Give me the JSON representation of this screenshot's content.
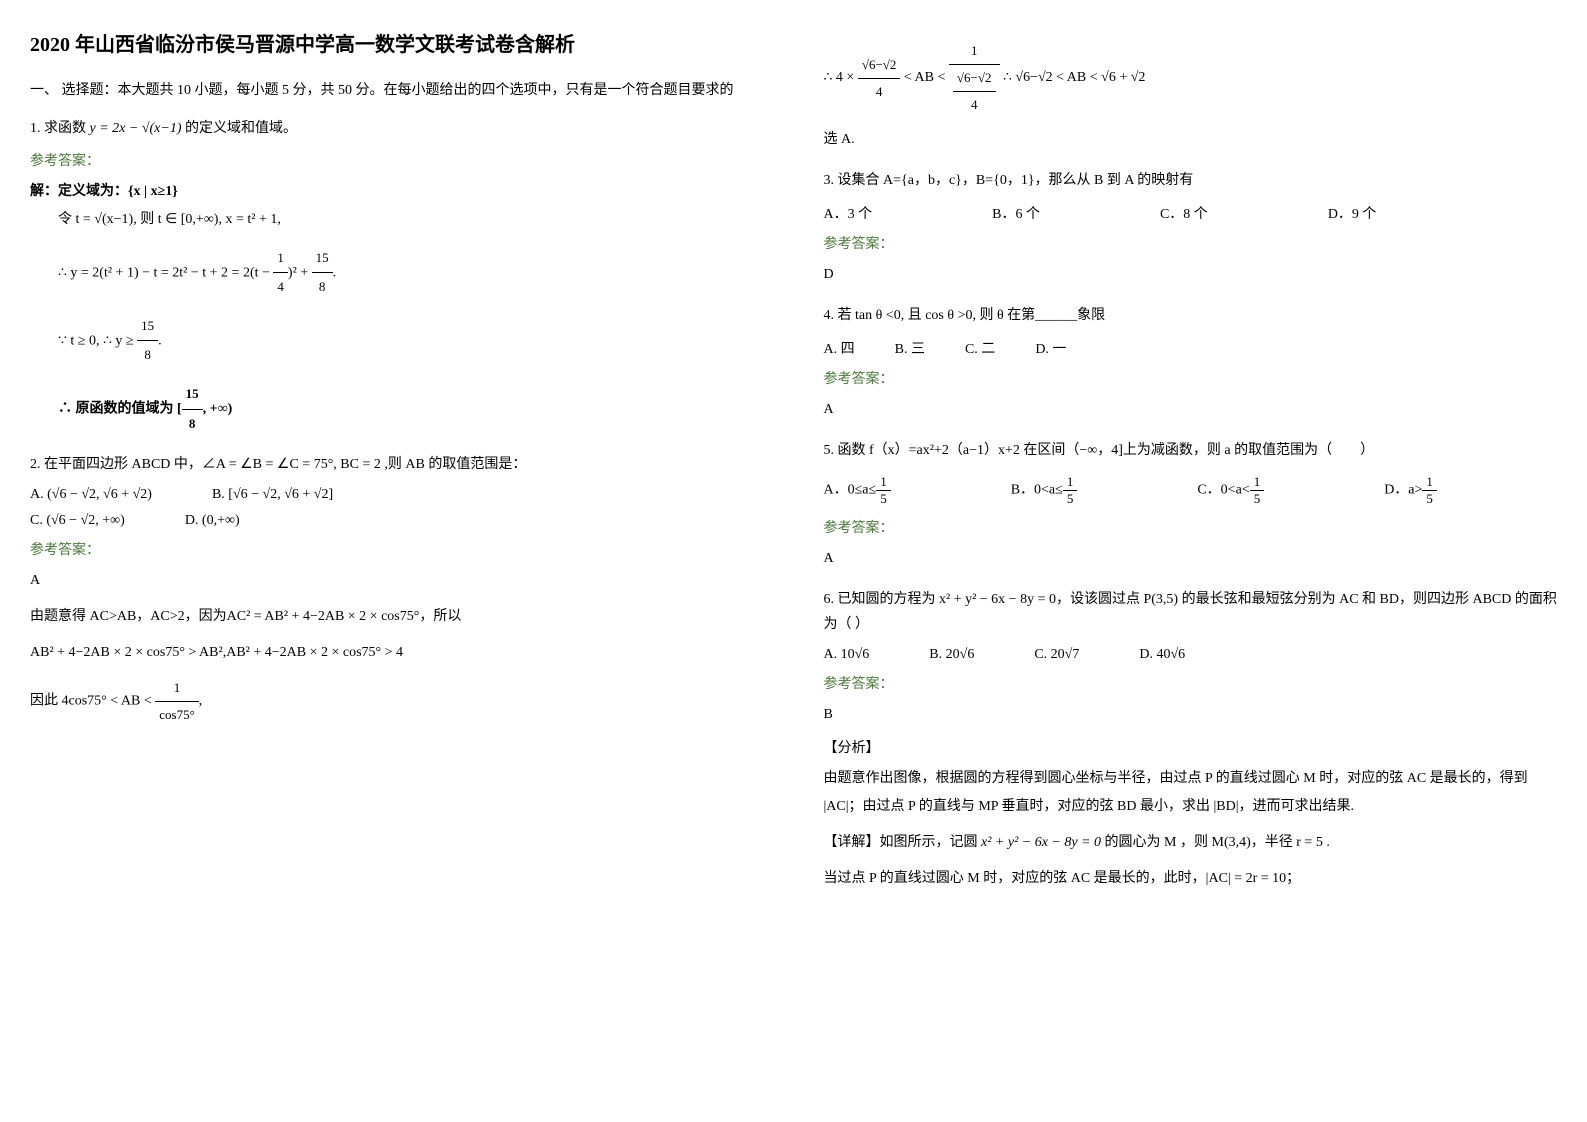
{
  "title": "2020 年山西省临汾市侯马晋源中学高一数学文联考试卷含解析",
  "section1_header": "一、 选择题：本大题共 10 小题，每小题 5 分，共 50 分。在每小题给出的四个选项中，只有是一个符合题目要求的",
  "q1": {
    "text_prefix": "1. 求函数",
    "formula": "y = 2x − √(x−1)",
    "text_suffix": " 的定义域和值域。",
    "answer_label": "参考答案：",
    "sol_line1": "解：定义域为：{x | x≥1}",
    "sol_line2": "令 t = √(x−1), 则 t ∈ [0,+∞), x = t² + 1,",
    "sol_line3_prefix": "∴ y = 2(t² + 1) − t = 2t² − t + 2 = 2",
    "sol_line3_mid": "(t − ",
    "sol_line3_frac1_num": "1",
    "sol_line3_frac1_den": "4",
    "sol_line3_mid2": ")² + ",
    "sol_line3_frac2_num": "15",
    "sol_line3_frac2_den": "8",
    "sol_line3_suffix": ".",
    "sol_line4_prefix": "∵ t ≥ 0, ∴ y ≥ ",
    "sol_line4_frac_num": "15",
    "sol_line4_frac_den": "8",
    "sol_line4_suffix": ".",
    "sol_line5_prefix": "∴ 原函数的值域为 [",
    "sol_line5_frac_num": "15",
    "sol_line5_frac_den": "8",
    "sol_line5_suffix": ", +∞)"
  },
  "q2": {
    "text": "2. 在平面四边形 ABCD 中，∠A = ∠B = ∠C = 75°, BC = 2 ,则 AB 的取值范围是：",
    "optA": "A. (√6 − √2, √6 + √2)",
    "optB": "B. [√6 − √2, √6 + √2]",
    "optC": "C. (√6 − √2, +∞)",
    "optD": "D. (0,+∞)",
    "answer_label": "参考答案：",
    "answer": "A",
    "sol_line1": "由题意得 AC>AB，AC>2，因为AC² = AB² + 4−2AB × 2 × cos75°，所以",
    "sol_line2": "AB² + 4−2AB × 2 × cos75° > AB²,AB² + 4−2AB × 2 × cos75° > 4",
    "sol_line3_prefix": "因此 4cos75° < AB < ",
    "sol_line3_frac_num": "1",
    "sol_line3_frac_den": "cos75°",
    "sol_line3_suffix": ",",
    "sol_line4_prefix": "∴ 4 × ",
    "sol_line4_frac1_num": "√6−√2",
    "sol_line4_frac1_den": "4",
    "sol_line4_mid": " < AB < ",
    "sol_line4_frac2_num": "1",
    "sol_line4_frac2_den_num": "√6−√2",
    "sol_line4_frac2_den_den": "4",
    "sol_line4_suffix": " ∴ √6−√2 < AB < √6 + √2",
    "sol_line5": "选 A."
  },
  "q3": {
    "text": "3. 设集合 A={a，b，c}，B={0，1}，那么从 B 到 A 的映射有",
    "optA": "A．3 个",
    "optB": "B．6 个",
    "optC": "C．8 个",
    "optD": "D．9 个",
    "answer_label": "参考答案：",
    "answer": "D"
  },
  "q4": {
    "text": "4. 若 tan θ <0, 且 cos θ >0, 则 θ 在第______象限",
    "optA": "A. 四",
    "optB": "B. 三",
    "optC": "C. 二",
    "optD": "D. 一",
    "answer_label": "参考答案：",
    "answer": "A"
  },
  "q5": {
    "text": "5. 函数 f（x）=ax²+2（a−1）x+2 在区间（−∞，4]上为减函数，则 a 的取值范围为（　　）",
    "optA_prefix": "A．0≤a≤",
    "optB_prefix": "B．0<a≤",
    "optC_prefix": "C．0<a<",
    "optD_prefix": "D．a>",
    "frac_num": "1",
    "frac_den": "5",
    "answer_label": "参考答案：",
    "answer": "A"
  },
  "q6": {
    "text": "6. 已知圆的方程为 x² + y² − 6x − 8y = 0，设该圆过点 P(3,5) 的最长弦和最短弦分别为 AC 和 BD，则四边形 ABCD 的面积为（ ）",
    "optA": "A. 10√6",
    "optB": "B. 20√6",
    "optC": "C. 20√7",
    "optD": "D. 40√6",
    "answer_label": "参考答案：",
    "answer": "B",
    "analysis_label": "【分析】",
    "analysis_text": "由题意作出图像，根据圆的方程得到圆心坐标与半径，由过点 P 的直线过圆心 M 时，对应的弦 AC 是最长的，得到 |AC|；由过点 P 的直线与 MP 垂直时，对应的弦 BD 最小，求出 |BD|，进而可求出结果.",
    "detail_label_prefix": "【详解】如图所示，记圆 ",
    "detail_formula": "x² + y² − 6x − 8y = 0",
    "detail_mid": " 的圆心为 M ，则 M(3,4)，半径 r = 5 .",
    "detail_line2": "当过点 P 的直线过圆心 M 时，对应的弦 AC 是最长的，此时，|AC| = 2r = 10；"
  },
  "colors": {
    "answer_label": "#4a7a3a",
    "text": "#000000",
    "background": "#ffffff"
  }
}
